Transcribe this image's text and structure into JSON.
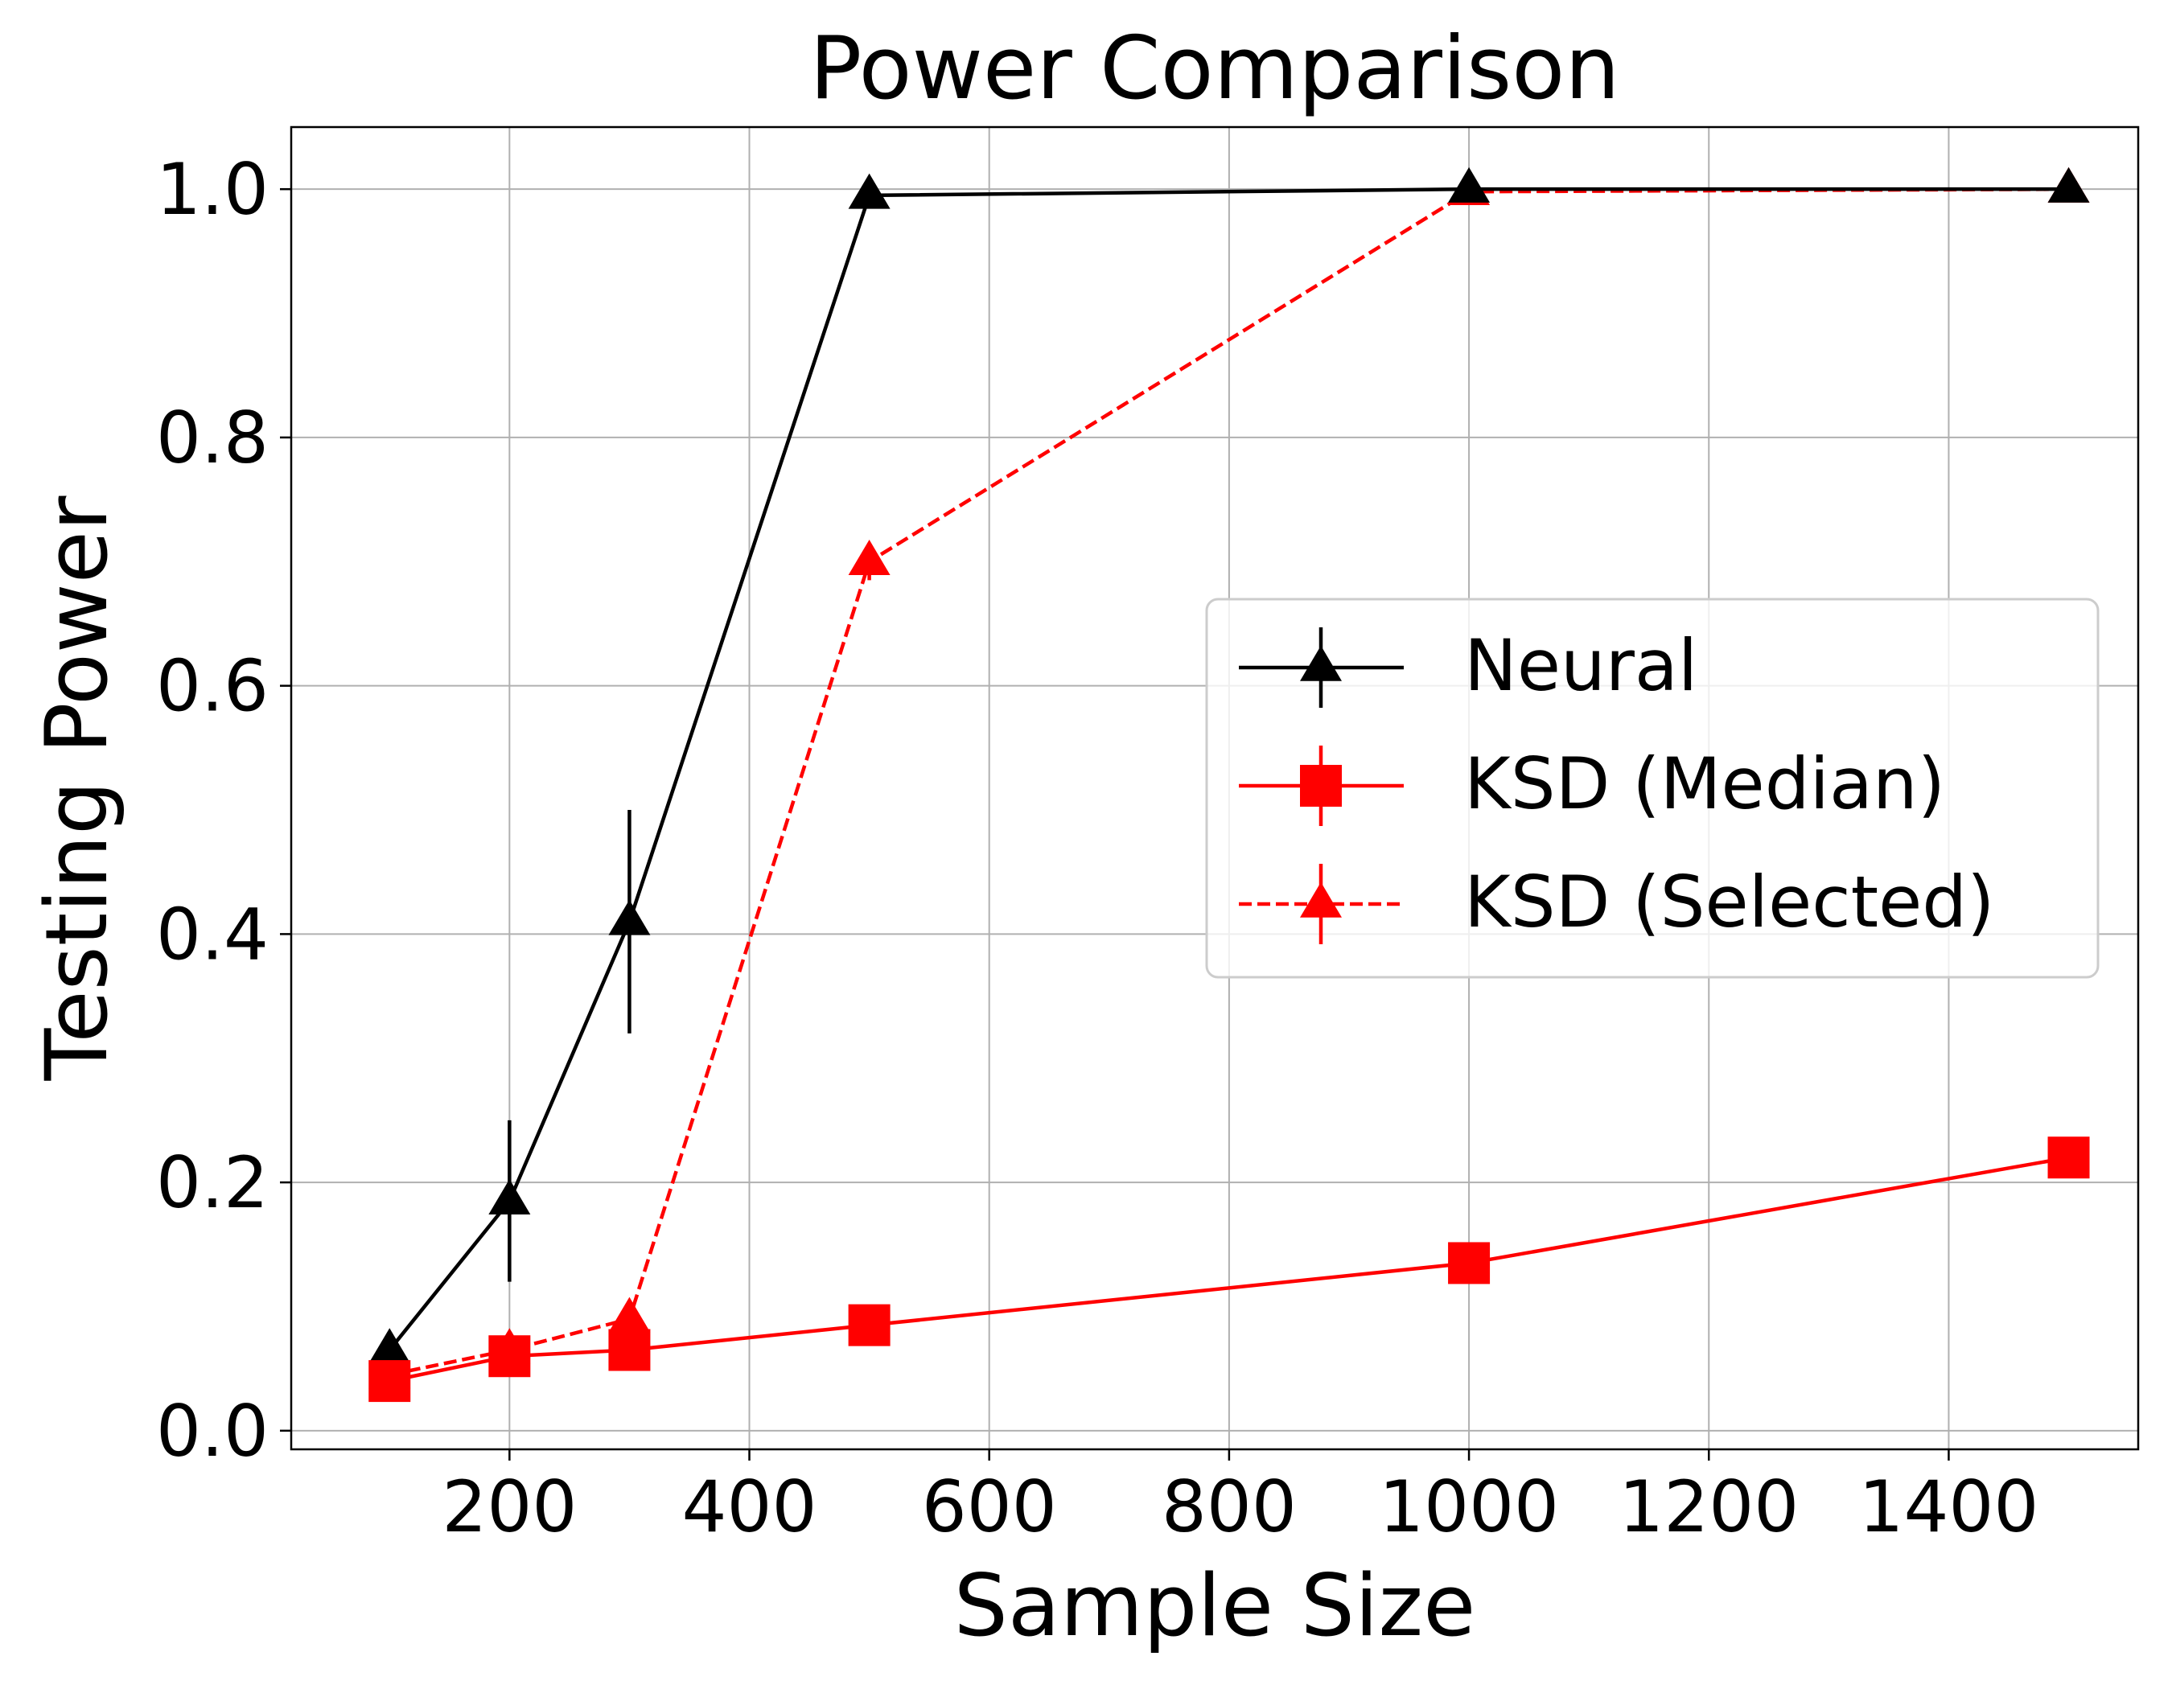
{
  "chart_data": {
    "type": "line",
    "title": "Power Comparison",
    "xlabel": "Sample Size",
    "ylabel": "Testing Power",
    "xlim": [
      18,
      1558
    ],
    "ylim": [
      -0.015,
      1.05
    ],
    "xticks": [
      200,
      400,
      600,
      800,
      1000,
      1200,
      1400
    ],
    "yticks": [
      0.0,
      0.2,
      0.4,
      0.6,
      0.8,
      1.0
    ],
    "ytick_labels": [
      "0.0",
      "0.2",
      "0.4",
      "0.6",
      "0.8",
      "1.0"
    ],
    "grid": true,
    "legend_position": "center-right",
    "x": [
      100,
      200,
      300,
      500,
      1000,
      1500
    ],
    "series": [
      {
        "name": "Neural",
        "values": [
          0.065,
          0.185,
          0.41,
          0.995,
          1.0,
          1.0
        ],
        "errors": [
          0.0,
          0.065,
          0.09,
          0.0,
          0.0,
          0.0
        ],
        "color": "#000000",
        "linestyle": "solid",
        "marker": "triangle"
      },
      {
        "name": "KSD (Median)",
        "values": [
          0.04,
          0.06,
          0.065,
          0.085,
          0.135,
          0.22
        ],
        "errors": [
          0.0,
          0.0,
          0.0,
          0.0,
          0.0,
          0.0
        ],
        "color": "#ff0000",
        "linestyle": "solid",
        "marker": "square"
      },
      {
        "name": "KSD (Selected)",
        "values": [
          0.045,
          0.065,
          0.09,
          0.7,
          0.998,
          1.0
        ],
        "errors": [
          0.0,
          0.0,
          0.0,
          0.015,
          0.0,
          0.0
        ],
        "color": "#ff0000",
        "linestyle": "dashed",
        "marker": "triangle"
      }
    ]
  }
}
